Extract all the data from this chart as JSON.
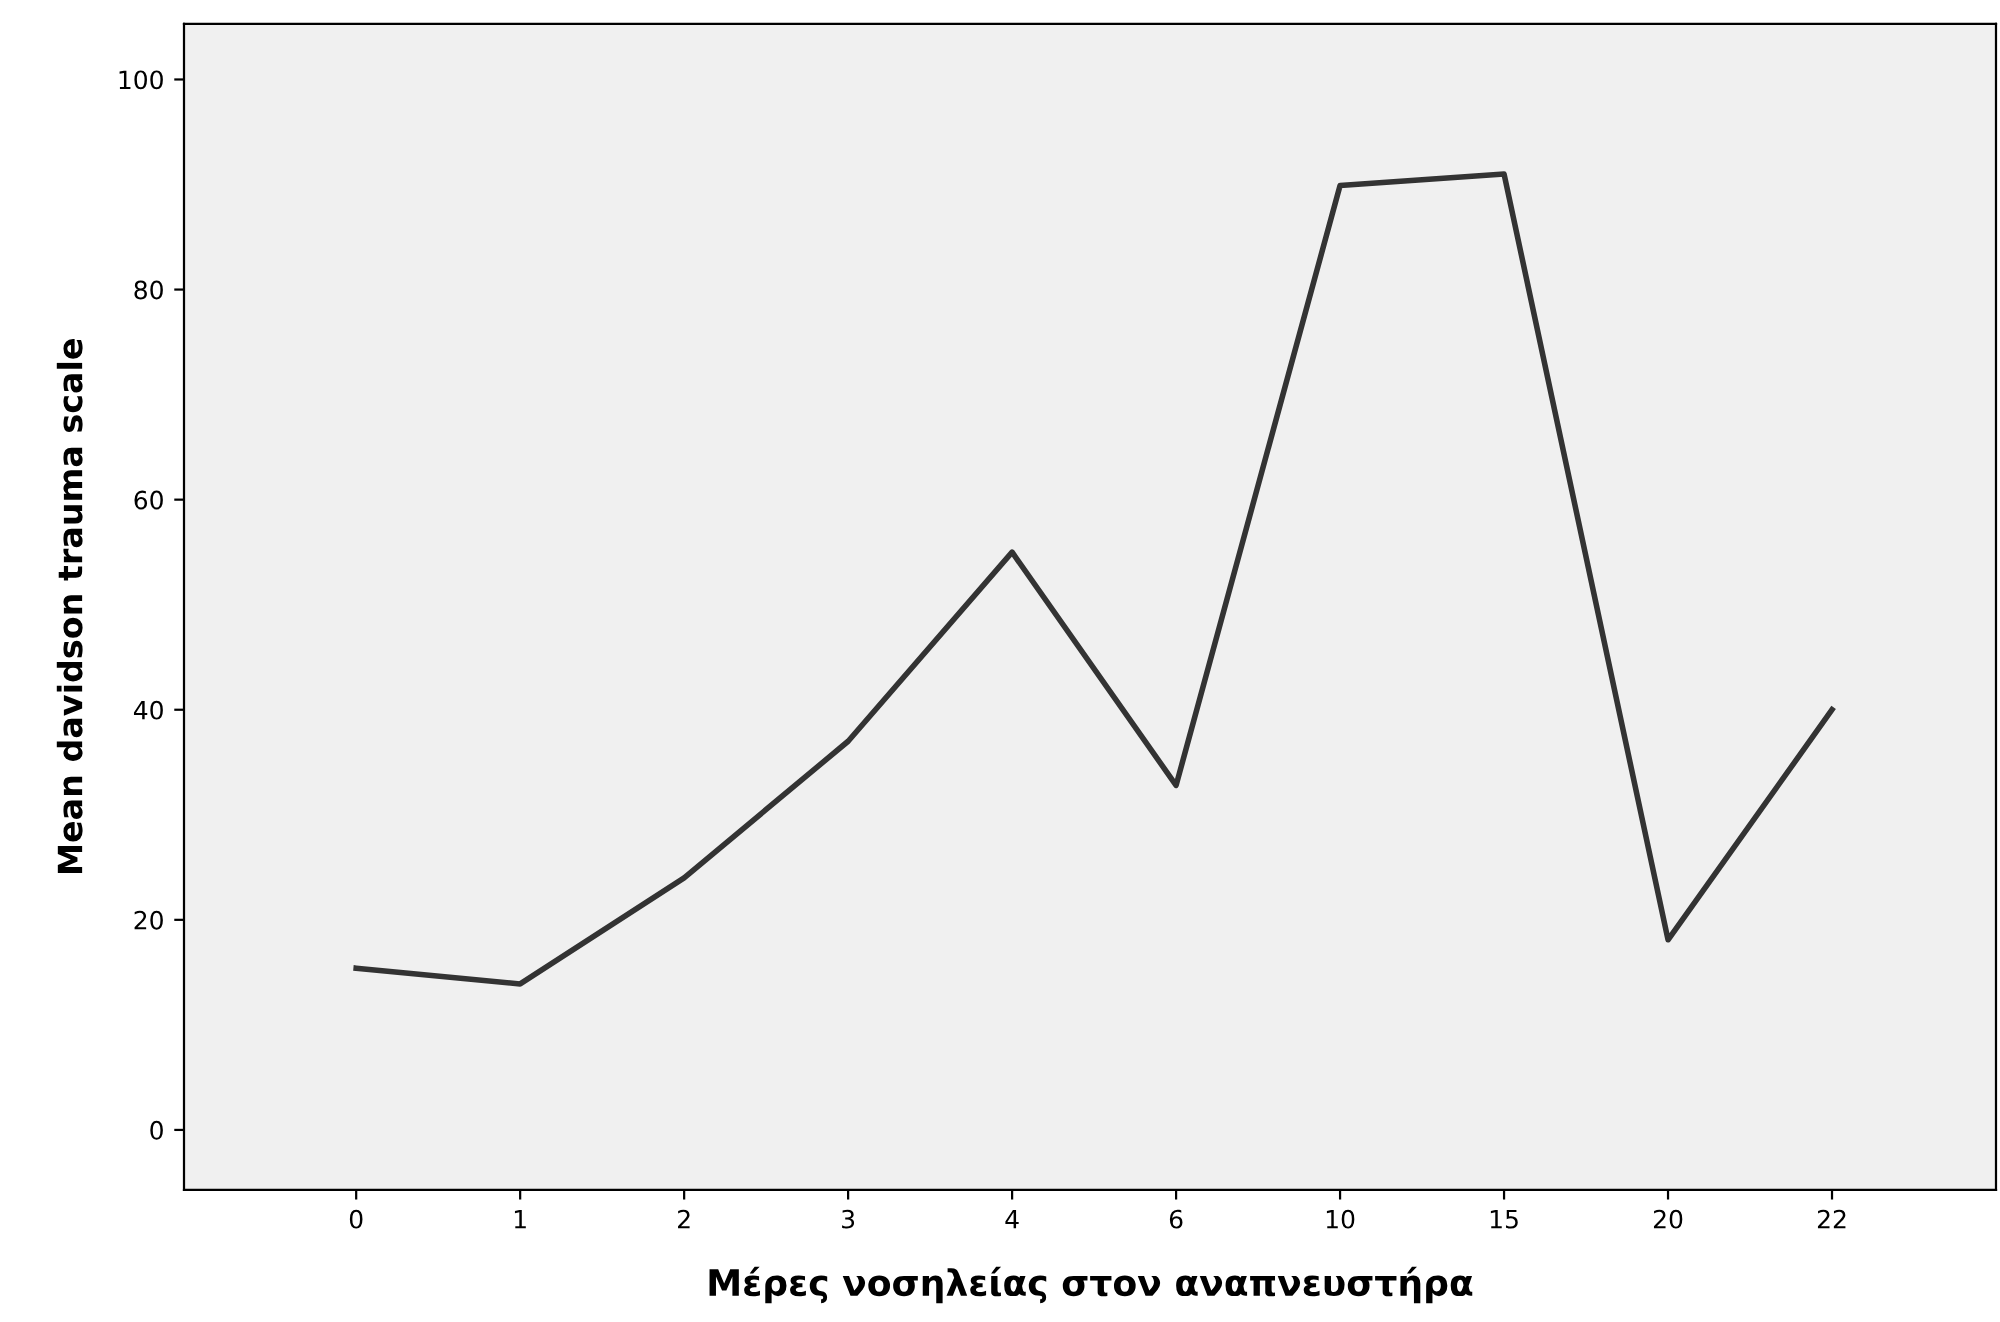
{
  "chart_data": {
    "type": "line",
    "xlabel": "Μέρες νοσηλείας στον αναπνευστήρα",
    "ylabel": "Mean davidson trauma scale",
    "categories": [
      "0",
      "1",
      "2",
      "3",
      "4",
      "6",
      "10",
      "15",
      "20",
      "22"
    ],
    "series": [
      {
        "color": "#333333",
        "values": [
          15.4,
          13.9,
          24,
          37,
          55,
          32.8,
          89.9,
          91,
          18.1,
          40
        ]
      }
    ],
    "ylim": [
      -5.7,
      105.3
    ],
    "yticks": [
      0,
      20,
      40,
      60,
      80,
      100
    ],
    "grid": false,
    "legend": false,
    "marker": "none",
    "line_style": "solid"
  }
}
